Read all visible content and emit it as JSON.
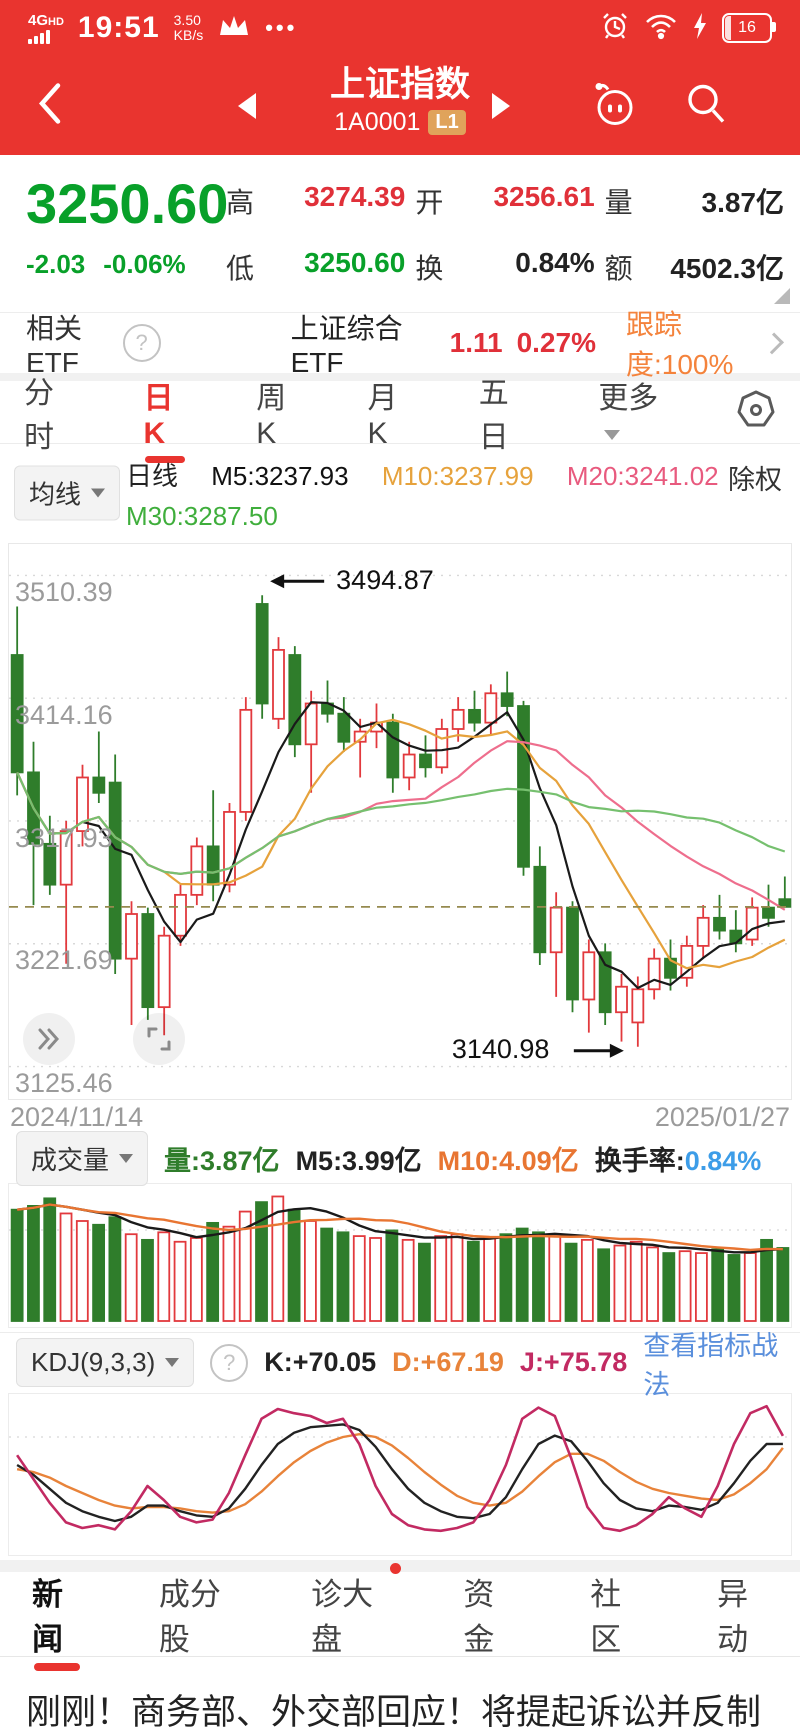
{
  "status_bar": {
    "network": "4G",
    "network_hd": "HD",
    "time": "19:51",
    "speed_value": "3.50",
    "speed_unit": "KB/s",
    "dots": "•••",
    "battery": "16"
  },
  "header": {
    "title": "上证指数",
    "code": "1A0001",
    "level_badge": "L1"
  },
  "quote": {
    "price": "3250.60",
    "change": "-2.03",
    "change_pct": "-0.06%",
    "stats": [
      {
        "label": "高",
        "value": "3274.39",
        "color": "red"
      },
      {
        "label": "开",
        "value": "3256.61",
        "color": "red"
      },
      {
        "label": "量",
        "value": "3.87亿",
        "color": "dark"
      },
      {
        "label": "低",
        "value": "3250.60",
        "color": "green"
      },
      {
        "label": "换",
        "value": "0.84%",
        "color": "dark"
      },
      {
        "label": "额",
        "value": "4502.3亿",
        "color": "dark"
      }
    ]
  },
  "etf": {
    "label": "相关ETF",
    "name": "上证综合ETF",
    "price": "1.11",
    "change_pct": "0.27%",
    "tracking": "跟踪度:100%"
  },
  "period_tabs": [
    {
      "label": "分时"
    },
    {
      "label": "日K"
    },
    {
      "label": "周K"
    },
    {
      "label": "月K"
    },
    {
      "label": "五日"
    },
    {
      "label": "更多"
    }
  ],
  "ma_legend": {
    "dropdown": "均线",
    "period": "日线",
    "m5": "M5:3237.93",
    "m10": "M10:3237.99",
    "m20": "M20:3241.02",
    "m30": "M30:3287.50",
    "exright": "除权"
  },
  "kline": {
    "y_labels": [
      "3510.39",
      "3414.16",
      "3317.93",
      "3221.69",
      "3125.46"
    ],
    "high_annotation": "3494.87",
    "low_annotation": "3140.98",
    "date_start": "2024/11/14",
    "date_end": "2025/01/27"
  },
  "volume": {
    "dropdown": "成交量",
    "vol_label": "量:3.87亿",
    "m5": "M5:3.99亿",
    "m10": "M10:4.09亿",
    "turnover_label": "换手率:",
    "turnover_value": "0.84%"
  },
  "kdj": {
    "dropdown": "KDJ(9,3,3)",
    "k": "K:+70.05",
    "d": "D:+67.19",
    "j": "J:+75.78",
    "link": "查看指标战法"
  },
  "bottom_tabs": [
    {
      "label": "新闻"
    },
    {
      "label": "成分股"
    },
    {
      "label": "诊大盘"
    },
    {
      "label": "资金"
    },
    {
      "label": "社区"
    },
    {
      "label": "异动"
    }
  ],
  "news": {
    "headline": "刚刚！商务部、外交部回应！将提起诉讼并反制"
  },
  "chart_data": {
    "type": "candlestick",
    "title": "上证指数 日K",
    "date_start": "2024/11/14",
    "date_end": "2025/01/27",
    "ylim": [
      3100,
      3535
    ],
    "grid_values": [
      3510.39,
      3414.16,
      3317.93,
      3221.69,
      3125.46
    ],
    "price_line_value": 3250.6,
    "high_marker": 3494.87,
    "low_marker": 3140.98,
    "ma_windows": [
      5,
      10,
      20,
      30
    ],
    "candles": [
      [
        3448,
        3486,
        3338,
        3356
      ],
      [
        3356,
        3380,
        3252,
        3300
      ],
      [
        3300,
        3322,
        3260,
        3268
      ],
      [
        3268,
        3318,
        3206,
        3310
      ],
      [
        3310,
        3362,
        3298,
        3352
      ],
      [
        3352,
        3388,
        3332,
        3340
      ],
      [
        3348,
        3370,
        3198,
        3210
      ],
      [
        3210,
        3255,
        3158,
        3245
      ],
      [
        3245,
        3250,
        3162,
        3172
      ],
      [
        3172,
        3235,
        3150,
        3228
      ],
      [
        3228,
        3268,
        3220,
        3260
      ],
      [
        3260,
        3305,
        3252,
        3298
      ],
      [
        3298,
        3342,
        3255,
        3268
      ],
      [
        3268,
        3332,
        3262,
        3325
      ],
      [
        3325,
        3415,
        3318,
        3405
      ],
      [
        3488,
        3494.87,
        3398,
        3410
      ],
      [
        3398,
        3462,
        3390,
        3452
      ],
      [
        3448,
        3455,
        3368,
        3378
      ],
      [
        3378,
        3420,
        3340,
        3410
      ],
      [
        3410,
        3428,
        3395,
        3402
      ],
      [
        3402,
        3415,
        3372,
        3380
      ],
      [
        3380,
        3398,
        3352,
        3388
      ],
      [
        3388,
        3410,
        3375,
        3395
      ],
      [
        3395,
        3402,
        3340,
        3352
      ],
      [
        3352,
        3380,
        3342,
        3370
      ],
      [
        3370,
        3385,
        3352,
        3360
      ],
      [
        3360,
        3398,
        3355,
        3390
      ],
      [
        3390,
        3415,
        3380,
        3405
      ],
      [
        3405,
        3420,
        3388,
        3395
      ],
      [
        3395,
        3425,
        3385,
        3418
      ],
      [
        3418,
        3435,
        3400,
        3408
      ],
      [
        3408,
        3412,
        3275,
        3282
      ],
      [
        3282,
        3298,
        3205,
        3215
      ],
      [
        3215,
        3262,
        3180,
        3250
      ],
      [
        3250,
        3255,
        3168,
        3178
      ],
      [
        3178,
        3225,
        3152,
        3215
      ],
      [
        3215,
        3222,
        3158,
        3168
      ],
      [
        3168,
        3198,
        3145,
        3188
      ],
      [
        3160,
        3196,
        3140.98,
        3186
      ],
      [
        3186,
        3218,
        3178,
        3210
      ],
      [
        3210,
        3225,
        3185,
        3195
      ],
      [
        3195,
        3228,
        3188,
        3220
      ],
      [
        3220,
        3252,
        3210,
        3242
      ],
      [
        3242,
        3260,
        3225,
        3232
      ],
      [
        3232,
        3248,
        3215,
        3222
      ],
      [
        3225,
        3258,
        3220,
        3250
      ],
      [
        3250,
        3268,
        3235,
        3242
      ],
      [
        3256.61,
        3274.39,
        3250.6,
        3250.6
      ]
    ],
    "volumes": [
      5.9,
      6.1,
      6.5,
      5.7,
      5.3,
      5.1,
      5.5,
      4.6,
      4.3,
      4.7,
      4.2,
      4.4,
      5.2,
      5.0,
      5.8,
      6.3,
      6.6,
      5.9,
      5.3,
      4.9,
      4.7,
      4.5,
      4.4,
      4.8,
      4.3,
      4.1,
      4.5,
      4.6,
      4.2,
      4.4,
      4.6,
      4.9,
      4.7,
      4.5,
      4.1,
      4.3,
      3.8,
      4.0,
      4.2,
      3.9,
      3.6,
      3.7,
      3.6,
      3.8,
      3.5,
      3.6,
      4.3,
      3.87
    ],
    "vol_ma_windows": [
      5,
      10
    ],
    "kdj": {
      "gridline": 75,
      "k": [
        55,
        48,
        38,
        28,
        22,
        18,
        15,
        18,
        26,
        26,
        22,
        19,
        18,
        24,
        38,
        55,
        70,
        78,
        82,
        83,
        84,
        80,
        68,
        52,
        38,
        28,
        22,
        18,
        17,
        20,
        32,
        52,
        70,
        76,
        72,
        58,
        42,
        30,
        24,
        22,
        26,
        25,
        23,
        28,
        42,
        58,
        70,
        70.05
      ],
      "d": [
        52,
        50,
        46,
        40,
        35,
        30,
        26,
        24,
        25,
        25,
        24,
        22,
        21,
        22,
        27,
        36,
        47,
        57,
        65,
        71,
        75,
        77,
        75,
        69,
        60,
        50,
        41,
        33,
        28,
        26,
        28,
        36,
        47,
        57,
        63,
        63,
        58,
        50,
        43,
        38,
        35,
        33,
        31,
        30,
        34,
        42,
        52,
        67.19
      ],
      "j": [
        62,
        45,
        28,
        14,
        10,
        12,
        9,
        22,
        40,
        30,
        18,
        14,
        16,
        35,
        62,
        88,
        95,
        92,
        90,
        85,
        88,
        70,
        40,
        20,
        12,
        9,
        8,
        10,
        14,
        30,
        55,
        88,
        96,
        90,
        60,
        25,
        10,
        8,
        12,
        20,
        32,
        24,
        18,
        40,
        70,
        92,
        97,
        75.78
      ]
    },
    "colors": {
      "up": "#e2393d",
      "down": "#2f7d2b",
      "ma": [
        "#1a1a1a",
        "#e6a23c",
        "#ee6e8d",
        "#76c06f"
      ],
      "vol_ma": [
        "#1a1a1a",
        "#e87532"
      ],
      "kdj": {
        "k": "#222222",
        "d": "#e8833a",
        "j": "#c22a62"
      },
      "price_line": "#958a4f",
      "grid": "#d8d8d8"
    }
  }
}
